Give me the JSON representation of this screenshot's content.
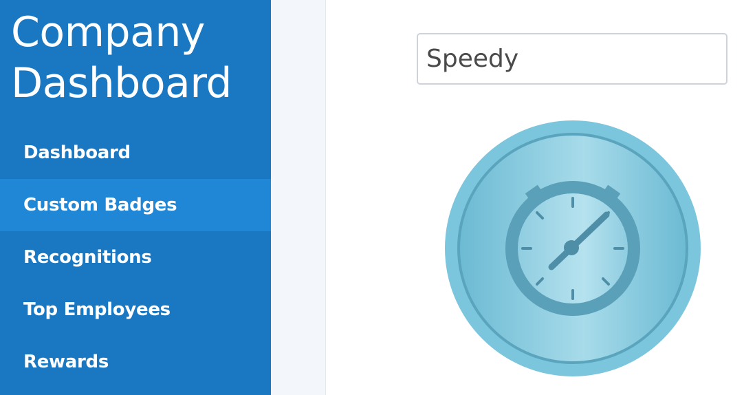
{
  "sidebar": {
    "brand": {
      "line1": "Company",
      "line2": "Dashboard"
    },
    "items": [
      {
        "label": "Dashboard",
        "active": false
      },
      {
        "label": "Custom Badges",
        "active": true
      },
      {
        "label": "Recognitions",
        "active": false
      },
      {
        "label": "Top Employees",
        "active": false
      },
      {
        "label": "Rewards",
        "active": false
      }
    ]
  },
  "editor": {
    "badge_name_value": "Speedy",
    "badge_icon": "stopwatch-icon"
  },
  "colors": {
    "sidebar_bg": "#1a78c2",
    "sidebar_active": "#1f87d6",
    "badge_fill": "#7cc6dd",
    "badge_stroke": "#5aa5bd"
  }
}
